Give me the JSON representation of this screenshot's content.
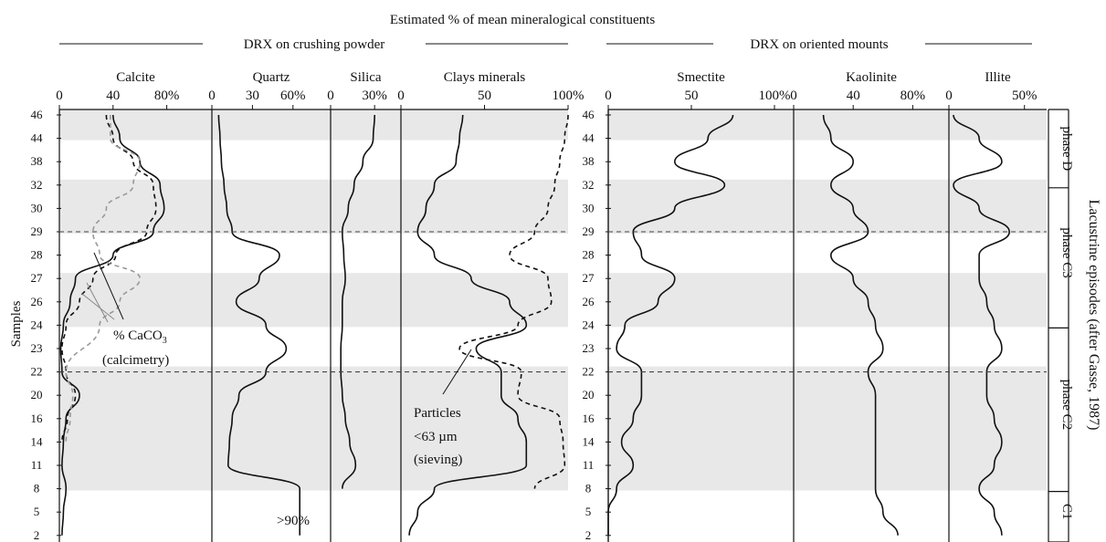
{
  "title": "Estimated % of mean mineralogical constituents",
  "group_labels": {
    "crushing": "DRX on crushing powder",
    "oriented": "DRX on oriented mounts"
  },
  "y_axis_label": "Samples",
  "sample_labels": [
    "46",
    "44",
    "38",
    "32",
    "30",
    "29",
    "28",
    "27",
    "26",
    "24",
    "23",
    "22",
    "20",
    "16",
    "14",
    "11",
    "8",
    "5",
    "2"
  ],
  "shaded_bands": [
    [
      "46",
      "44"
    ],
    [
      "32",
      "29"
    ],
    [
      "27",
      "24"
    ],
    [
      "22",
      "8"
    ]
  ],
  "phase_lines_at": [
    "29",
    "22"
  ],
  "panels": [
    {
      "key": "calcite",
      "title": "Calcite",
      "ticks": [
        "0",
        "40",
        "80%"
      ],
      "range": [
        0,
        100
      ]
    },
    {
      "key": "quartz",
      "title": "Quartz",
      "ticks": [
        "0",
        "30",
        "60%"
      ],
      "range": [
        0,
        75
      ]
    },
    {
      "key": "silica",
      "title": "Silica",
      "ticks": [
        "0",
        "30%"
      ],
      "range": [
        0,
        38
      ]
    },
    {
      "key": "clays",
      "title": "Clays minerals",
      "ticks": [
        "0",
        "50",
        "100%"
      ],
      "range": [
        0,
        100
      ]
    },
    {
      "key": "smectite",
      "title": "Smectite",
      "ticks": [
        "0",
        "50",
        "100%"
      ],
      "range": [
        0,
        100
      ]
    },
    {
      "key": "kaolinite",
      "title": "Kaolinite",
      "ticks": [
        "0",
        "40",
        "80%"
      ],
      "range": [
        0,
        100
      ]
    },
    {
      "key": "illite",
      "title": "Illite",
      "ticks": [
        "0",
        "50%"
      ],
      "range": [
        0,
        55
      ]
    }
  ],
  "annotations": {
    "caco3_line1": "% CaCO",
    "caco3_sub": "3",
    "caco3_line2": "(calcimetry)",
    "particles_line1": "Particles",
    "particles_line2": "<63 µm",
    "particles_line3": "(sieving)",
    "quartz_over": ">90%"
  },
  "episodes": {
    "title": "Lacustrine episodes (after Gasse, 1987)",
    "phases": [
      {
        "label": "phase D",
        "from": "46",
        "to": "32"
      },
      {
        "label": "phase C3",
        "from": "32",
        "to": "24"
      },
      {
        "label": "phase C2",
        "from": "24",
        "to": "8"
      },
      {
        "label": "C1",
        "from": "8",
        "to": "2"
      }
    ]
  },
  "chart_data": {
    "type": "line",
    "y_categories": [
      "46",
      "44",
      "38",
      "32",
      "30",
      "29",
      "28",
      "27",
      "26",
      "24",
      "23",
      "22",
      "20",
      "16",
      "14",
      "11",
      "8",
      "5",
      "2"
    ],
    "panels": [
      {
        "name": "Calcite",
        "xlim": [
          0,
          100
        ],
        "series": [
          {
            "name": "Calcite (DRX)",
            "style": "solid",
            "values": [
              40,
              45,
              60,
              75,
              78,
              70,
              40,
              12,
              8,
              3,
              1,
              2,
              15,
              5,
              3,
              2,
              5,
              3,
              2
            ]
          },
          {
            "name": "% CaCO3 (calcimetry)",
            "style": "dashed",
            "color": "#111",
            "values": [
              35,
              40,
              55,
              70,
              72,
              65,
              42,
              25,
              15,
              5,
              2,
              5,
              12,
              6,
              2,
              null,
              null,
              null,
              null
            ]
          },
          {
            "name": "% CaCO3 (calcimetry)",
            "style": "dashed",
            "color": "#999",
            "values": [
              38,
              38,
              60,
              55,
              35,
              25,
              30,
              60,
              45,
              30,
              null,
              5,
              10,
              8,
              5,
              null,
              null,
              null,
              null
            ]
          }
        ]
      },
      {
        "name": "Quartz",
        "xlim": [
          0,
          75
        ],
        "series": [
          {
            "name": "Quartz",
            "style": "solid",
            "values": [
              5,
              6,
              7,
              9,
              11,
              15,
              50,
              35,
              18,
              40,
              55,
              40,
              20,
              15,
              13,
              12,
              65,
              65,
              65
            ]
          }
        ]
      },
      {
        "name": "Silica",
        "xlim": [
          0,
          38
        ],
        "series": [
          {
            "name": "Silica",
            "style": "solid",
            "values": [
              30,
              29,
              22,
              16,
              12,
              8,
              9,
              10,
              8,
              8,
              7,
              7,
              8,
              10,
              13,
              17,
              8,
              null,
              null
            ]
          }
        ]
      },
      {
        "name": "Clays minerals",
        "xlim": [
          0,
          100
        ],
        "series": [
          {
            "name": "Clays minerals (DRX)",
            "style": "solid",
            "values": [
              37,
              35,
              33,
              20,
              15,
              10,
              20,
              42,
              65,
              75,
              45,
              60,
              60,
              70,
              75,
              75,
              20,
              10,
              5
            ]
          },
          {
            "name": "Particles <63 µm (sieving)",
            "style": "dashed",
            "values": [
              100,
              98,
              95,
              92,
              88,
              80,
              65,
              88,
              90,
              70,
              35,
              72,
              70,
              95,
              97,
              98,
              80,
              null,
              null
            ]
          }
        ]
      },
      {
        "name": "Smectite",
        "xlim": [
          0,
          100
        ],
        "series": [
          {
            "name": "Smectite",
            "style": "solid",
            "values": [
              75,
              60,
              40,
              70,
              40,
              15,
              20,
              40,
              30,
              10,
              5,
              20,
              20,
              15,
              8,
              15,
              5,
              0,
              0
            ]
          }
        ]
      },
      {
        "name": "Kaolinite",
        "xlim": [
          0,
          100
        ],
        "series": [
          {
            "name": "Kaolinite",
            "style": "solid",
            "values": [
              20,
              25,
              40,
              25,
              40,
              50,
              25,
              40,
              50,
              55,
              60,
              50,
              55,
              55,
              55,
              55,
              55,
              60,
              70
            ]
          }
        ]
      },
      {
        "name": "Illite",
        "xlim": [
          0,
          55
        ],
        "series": [
          {
            "name": "Illite",
            "style": "solid",
            "values": [
              3,
              20,
              35,
              3,
              20,
              40,
              20,
              20,
              25,
              30,
              35,
              25,
              25,
              30,
              35,
              30,
              20,
              30,
              35
            ]
          }
        ]
      }
    ]
  }
}
